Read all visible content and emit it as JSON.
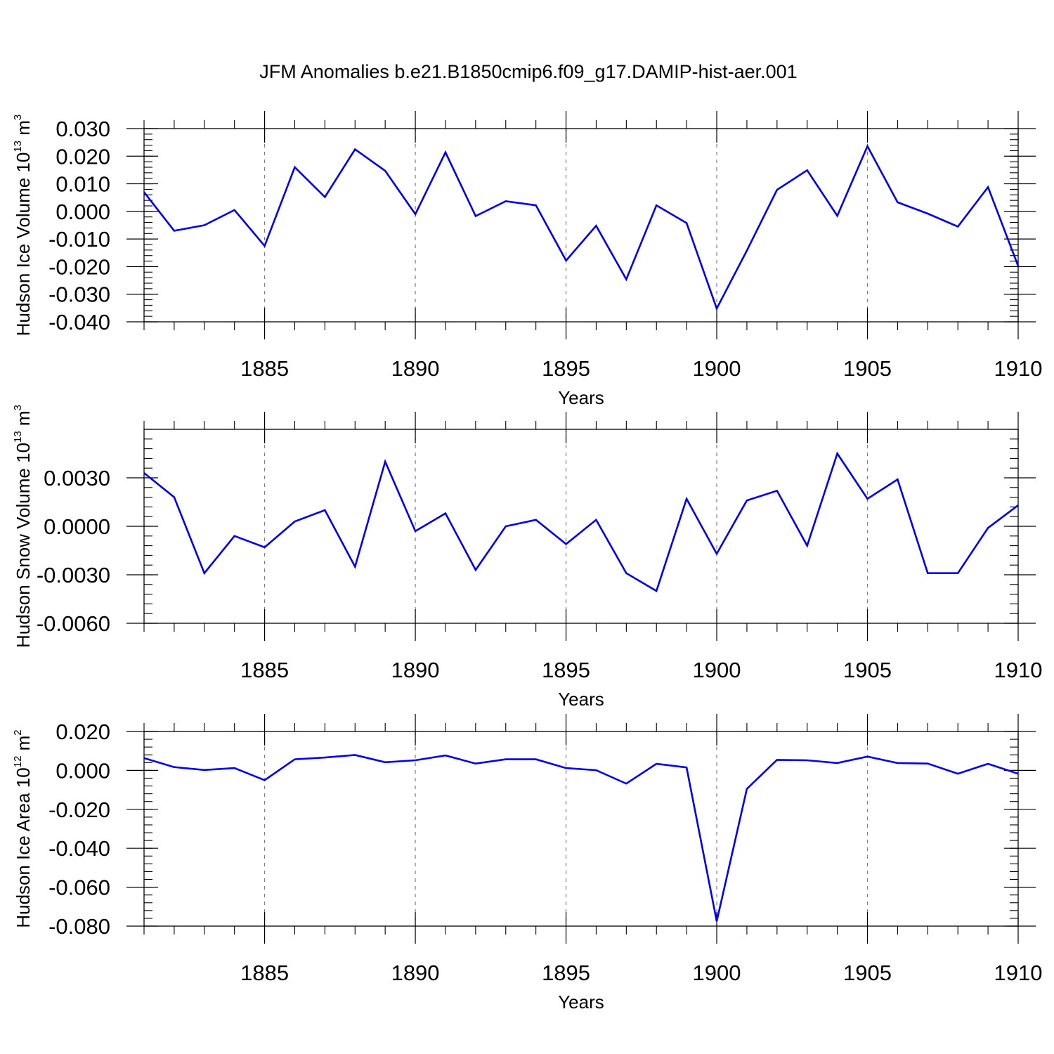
{
  "title": "JFM Anomalies b.e21.B1850cmip6.f09_g17.DAMIP-hist-aer.001",
  "colors": {
    "line": "#0000ee",
    "axis": "#000000",
    "grid": "#7f7f7f"
  },
  "chart_data": [
    {
      "type": "line",
      "ylabel": "Hudson Ice Volume 10",
      "ylabel_exp": "13",
      "ylabel_unit": " m",
      "ylabel_unit_exp": "3",
      "xlabel": "Years",
      "xlim": [
        1881,
        1910
      ],
      "ylim": [
        -0.04,
        0.03
      ],
      "xticks": [
        1885,
        1890,
        1895,
        1900,
        1905,
        1910
      ],
      "yticks": [
        -0.04,
        -0.03,
        -0.02,
        -0.01,
        0.0,
        0.01,
        0.02,
        0.03
      ],
      "ytick_labels": [
        "-0.040",
        "-0.030",
        "-0.020",
        "-0.010",
        "0.000",
        "0.010",
        "0.020",
        "0.030"
      ],
      "x": [
        1881,
        1882,
        1883,
        1884,
        1885,
        1886,
        1887,
        1888,
        1889,
        1890,
        1891,
        1892,
        1893,
        1894,
        1895,
        1896,
        1897,
        1898,
        1899,
        1900,
        1901,
        1902,
        1903,
        1904,
        1905,
        1906,
        1907,
        1908,
        1909,
        1910
      ],
      "values": [
        0.007,
        -0.007,
        -0.005,
        0.0005,
        -0.0125,
        0.016,
        0.0052,
        0.0225,
        0.0147,
        -0.001,
        0.0214,
        -0.0017,
        0.0037,
        0.0022,
        -0.0178,
        -0.0052,
        -0.0246,
        0.0022,
        -0.0042,
        -0.0352,
        -0.0142,
        0.0078,
        0.0149,
        -0.0016,
        0.0236,
        0.0033,
        -0.0008,
        -0.0055,
        0.0088,
        -0.0198
      ],
      "grid": "vertical dashed lines at major x ticks"
    },
    {
      "type": "line",
      "ylabel": "Hudson Snow Volume 10",
      "ylabel_exp": "13",
      "ylabel_unit": " m",
      "ylabel_unit_exp": "3",
      "xlabel": "Years",
      "xlim": [
        1881,
        1910
      ],
      "ylim": [
        -0.006,
        0.006
      ],
      "xticks": [
        1885,
        1890,
        1895,
        1900,
        1905,
        1910
      ],
      "yticks": [
        -0.006,
        -0.003,
        0.0,
        0.003
      ],
      "ytick_labels": [
        "-0.0060",
        "-0.0030",
        "0.0000",
        "0.0030"
      ],
      "x": [
        1881,
        1882,
        1883,
        1884,
        1885,
        1886,
        1887,
        1888,
        1889,
        1890,
        1891,
        1892,
        1893,
        1894,
        1895,
        1896,
        1897,
        1898,
        1899,
        1900,
        1901,
        1902,
        1903,
        1904,
        1905,
        1906,
        1907,
        1908,
        1909,
        1910
      ],
      "values": [
        0.0033,
        0.0018,
        -0.0029,
        -0.0006,
        -0.0013,
        0.0003,
        0.001,
        -0.0025,
        0.004,
        -0.0003,
        0.0008,
        -0.0027,
        0.0,
        0.0004,
        -0.0011,
        0.0004,
        -0.0029,
        -0.004,
        0.0017,
        -0.0017,
        0.0016,
        0.0022,
        -0.0012,
        0.0045,
        0.0017,
        0.0029,
        -0.0029,
        -0.0029,
        -0.0001,
        0.0013
      ],
      "grid": "vertical dashed lines at major x ticks"
    },
    {
      "type": "line",
      "ylabel": "Hudson Ice Area 10",
      "ylabel_exp": "12",
      "ylabel_unit": " m",
      "ylabel_unit_exp": "2",
      "xlabel": "Years",
      "xlim": [
        1881,
        1910
      ],
      "ylim": [
        -0.08,
        0.02
      ],
      "xticks": [
        1885,
        1890,
        1895,
        1900,
        1905,
        1910
      ],
      "yticks": [
        -0.08,
        -0.06,
        -0.04,
        -0.02,
        0.0,
        0.02
      ],
      "ytick_labels": [
        "-0.080",
        "-0.060",
        "-0.040",
        "-0.020",
        "0.000",
        "0.020"
      ],
      "x": [
        1881,
        1882,
        1883,
        1884,
        1885,
        1886,
        1887,
        1888,
        1889,
        1890,
        1891,
        1892,
        1893,
        1894,
        1895,
        1896,
        1897,
        1898,
        1899,
        1900,
        1901,
        1902,
        1903,
        1904,
        1905,
        1906,
        1907,
        1908,
        1909,
        1910
      ],
      "values": [
        0.0063,
        0.0017,
        0.0002,
        0.0012,
        -0.005,
        0.0057,
        0.0066,
        0.0079,
        0.0042,
        0.0052,
        0.0077,
        0.0035,
        0.0057,
        0.0057,
        0.0012,
        0.0001,
        -0.0068,
        0.0034,
        0.0015,
        -0.0775,
        -0.0095,
        0.0054,
        0.0052,
        0.0038,
        0.0071,
        0.0038,
        0.0035,
        -0.0017,
        0.0034,
        -0.0017
      ],
      "grid": "vertical dashed lines at major x ticks"
    }
  ]
}
